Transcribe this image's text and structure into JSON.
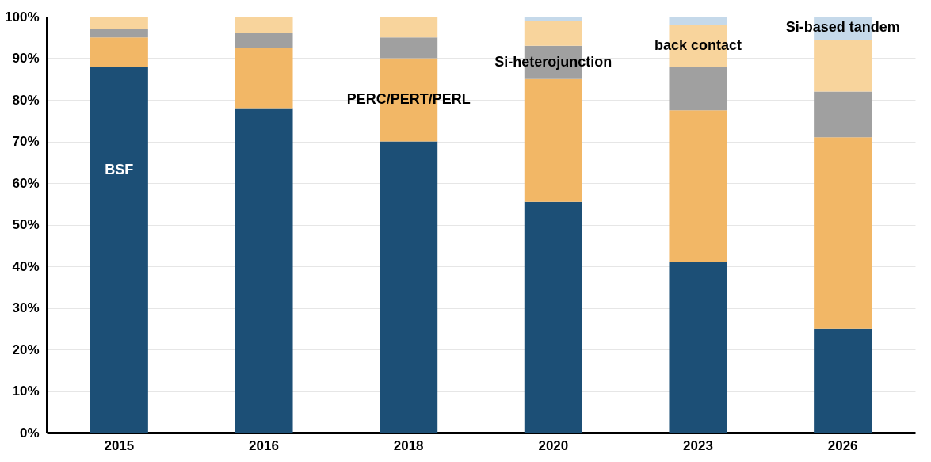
{
  "chart_data": {
    "type": "bar",
    "stacked": true,
    "categories": [
      "2015",
      "2016",
      "2018",
      "2020",
      "2023",
      "2026"
    ],
    "series": [
      {
        "name": "BSF",
        "color": "#1c4f76",
        "values": [
          88,
          78,
          70,
          55.5,
          41,
          25
        ]
      },
      {
        "name": "PERC/PERT/PERL",
        "color": "#f2b766",
        "values": [
          7,
          14.5,
          20,
          29.5,
          36.5,
          46
        ]
      },
      {
        "name": "Si-heterojunction",
        "color": "#a0a0a0",
        "values": [
          2,
          3.5,
          5,
          8,
          10.5,
          11
        ]
      },
      {
        "name": "back contact",
        "color": "#f8d49c",
        "values": [
          3,
          4,
          5,
          6,
          10,
          12.5
        ]
      },
      {
        "name": "Si-based tandem",
        "color": "#c5d9ea",
        "values": [
          0,
          0,
          0,
          1,
          2,
          5.5
        ]
      }
    ],
    "ylim": [
      0,
      100
    ],
    "yticks": [
      {
        "value": 0,
        "label": "0%"
      },
      {
        "value": 10,
        "label": "10%"
      },
      {
        "value": 20,
        "label": "20%"
      },
      {
        "value": 30,
        "label": "30%"
      },
      {
        "value": 40,
        "label": "40%"
      },
      {
        "value": 50,
        "label": "50%"
      },
      {
        "value": 60,
        "label": "60%"
      },
      {
        "value": 70,
        "label": "70%"
      },
      {
        "value": 80,
        "label": "80%"
      },
      {
        "value": 90,
        "label": "90%"
      },
      {
        "value": 100,
        "label": "100%"
      }
    ],
    "grid": "y",
    "legend": false
  }
}
